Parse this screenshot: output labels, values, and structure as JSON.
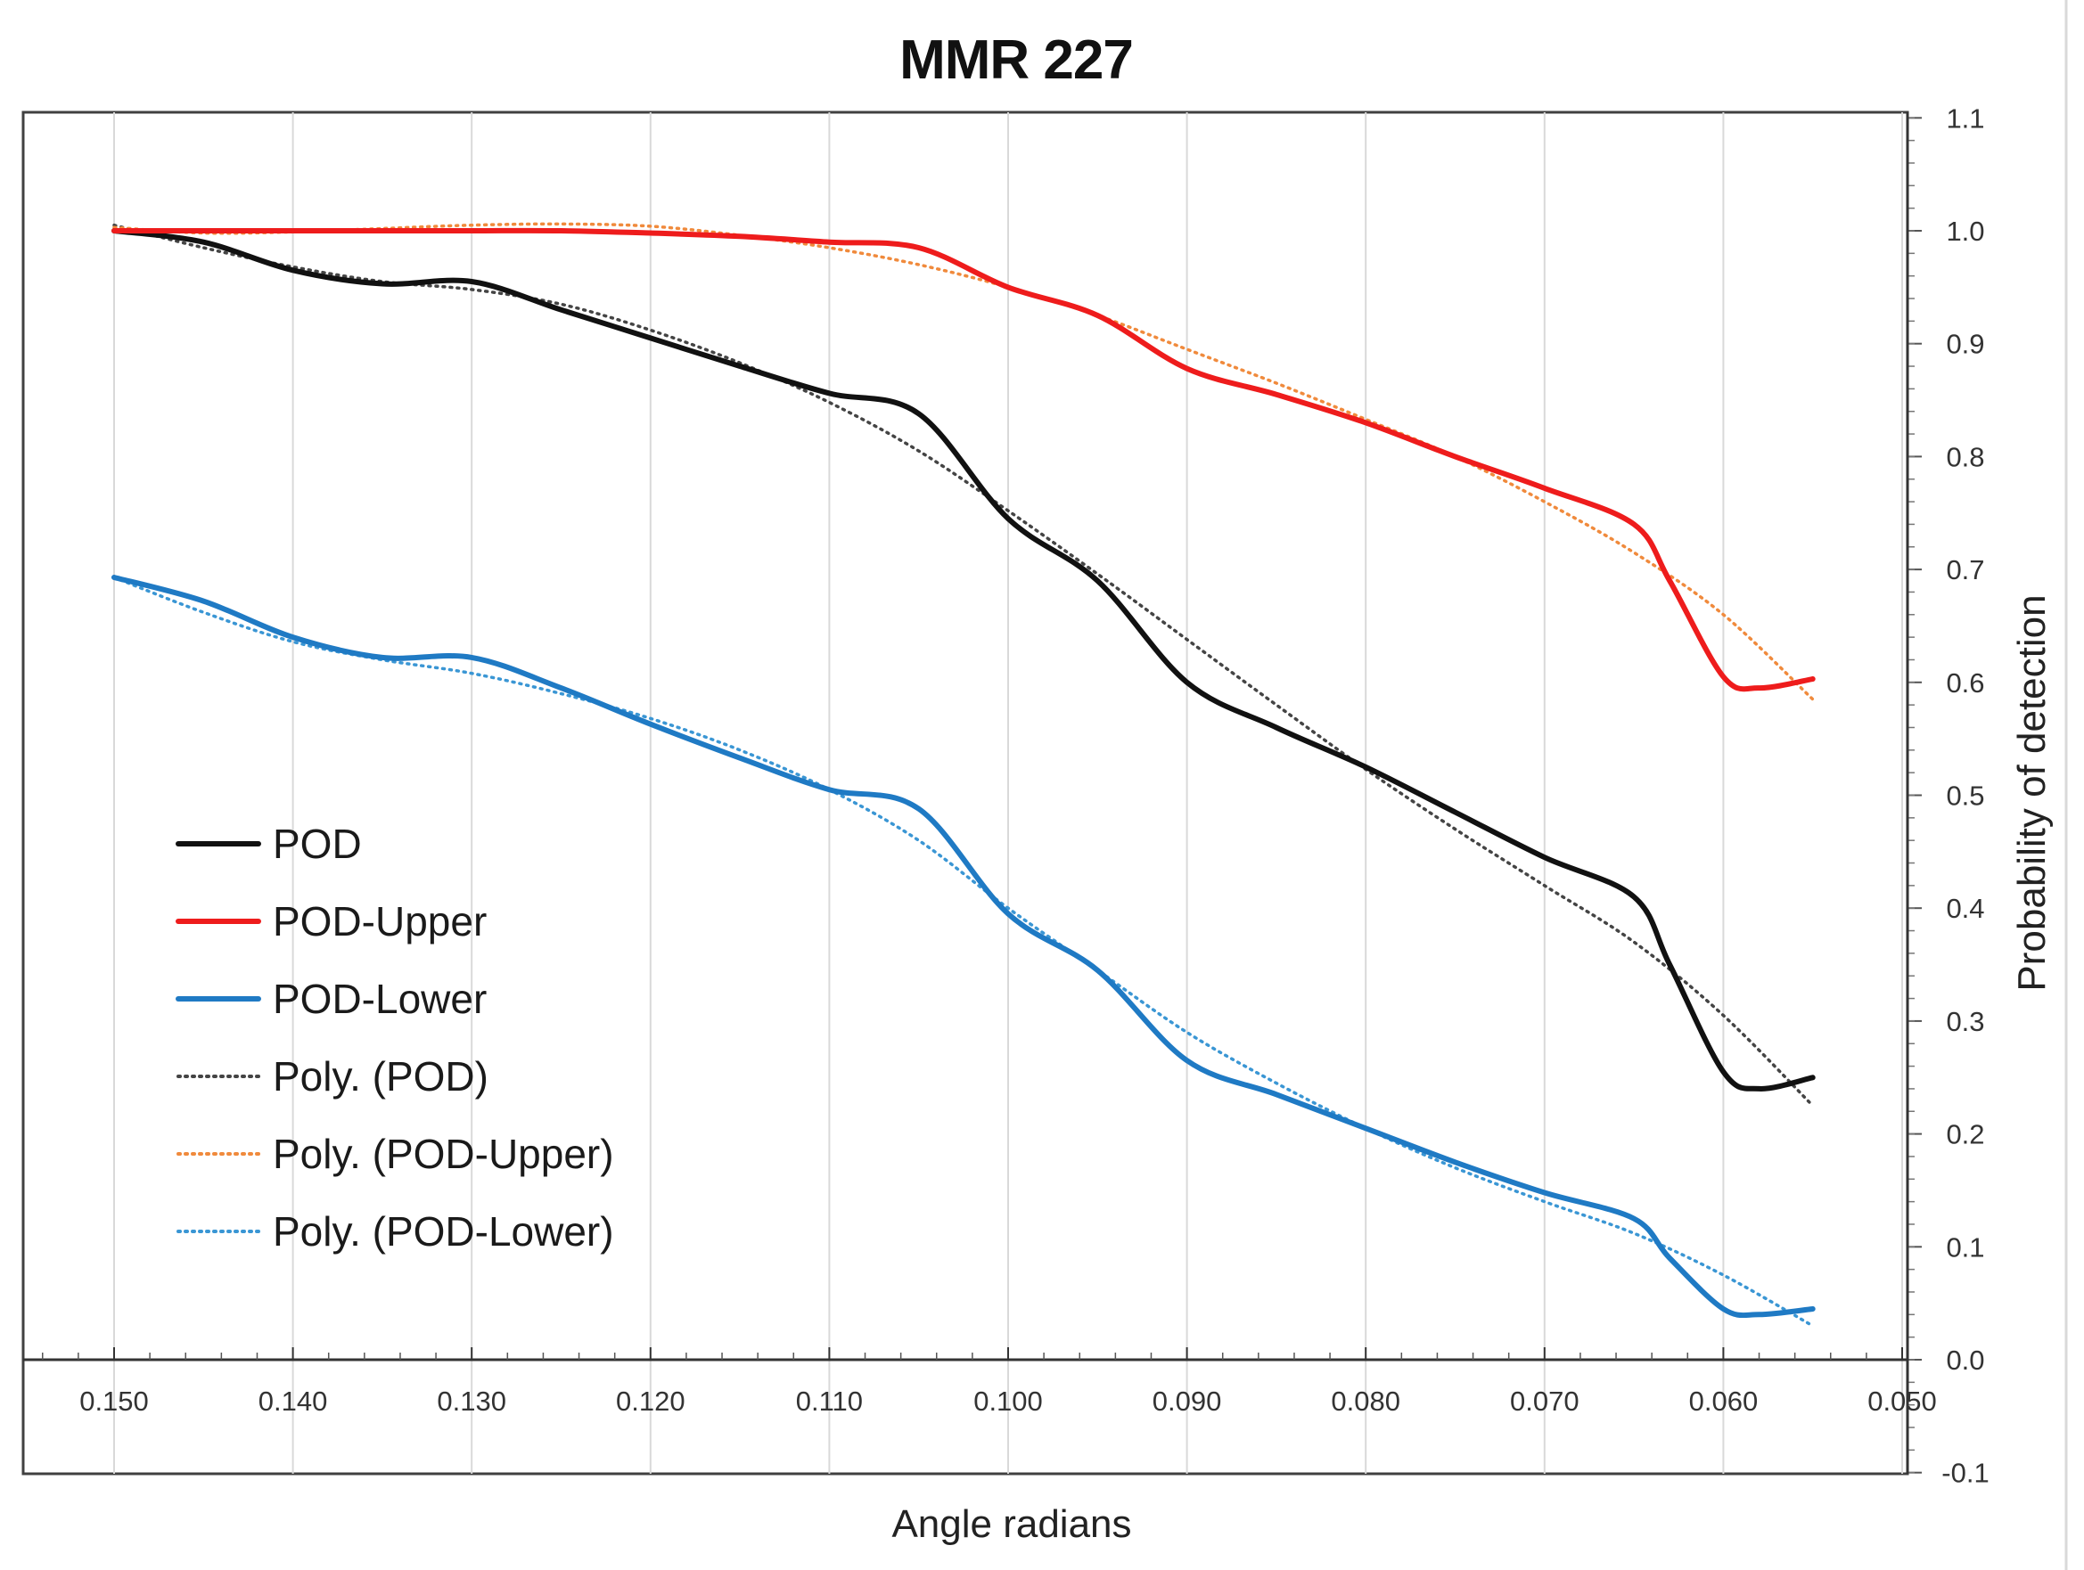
{
  "chart_data": {
    "type": "line",
    "title": "MMR 227",
    "xlabel": "Angle radians",
    "ylabel": "Probability of detection",
    "xlim": [
      0.15,
      0.05
    ],
    "ylim": [
      -0.1,
      1.1
    ],
    "x_ticks": [
      "0.150",
      "0.140",
      "0.130",
      "0.120",
      "0.110",
      "0.100",
      "0.090",
      "0.080",
      "0.070",
      "0.060",
      "0.050"
    ],
    "y_ticks": [
      "1.1",
      "1.0",
      "0.9",
      "0.8",
      "0.7",
      "0.6",
      "0.5",
      "0.4",
      "0.3",
      "0.2",
      "0.1",
      "0.0",
      "-0.1"
    ],
    "grid": true,
    "legend_position": "bottom-left",
    "series": [
      {
        "name": "POD",
        "color": "#111111",
        "style": "solid",
        "x": [
          0.15,
          0.145,
          0.14,
          0.135,
          0.13,
          0.125,
          0.12,
          0.115,
          0.11,
          0.105,
          0.1,
          0.095,
          0.09,
          0.085,
          0.08,
          0.075,
          0.07,
          0.065,
          0.063,
          0.06,
          0.058,
          0.055
        ],
        "y": [
          1.0,
          0.99,
          0.965,
          0.953,
          0.955,
          0.93,
          0.905,
          0.88,
          0.856,
          0.838,
          0.745,
          0.69,
          0.6,
          0.56,
          0.525,
          0.485,
          0.445,
          0.41,
          0.35,
          0.255,
          0.24,
          0.25
        ]
      },
      {
        "name": "POD-Upper",
        "color": "#ee1c1c",
        "style": "solid",
        "x": [
          0.15,
          0.145,
          0.14,
          0.135,
          0.13,
          0.125,
          0.12,
          0.115,
          0.11,
          0.105,
          0.1,
          0.095,
          0.09,
          0.085,
          0.08,
          0.075,
          0.07,
          0.065,
          0.063,
          0.06,
          0.058,
          0.055
        ],
        "y": [
          1.0,
          1.0,
          1.0,
          1.0,
          1.0,
          1.0,
          0.998,
          0.995,
          0.99,
          0.985,
          0.95,
          0.925,
          0.878,
          0.855,
          0.83,
          0.8,
          0.772,
          0.74,
          0.69,
          0.605,
          0.595,
          0.603
        ]
      },
      {
        "name": "POD-Lower",
        "color": "#1f7ac4",
        "style": "solid",
        "x": [
          0.15,
          0.145,
          0.14,
          0.135,
          0.13,
          0.125,
          0.12,
          0.115,
          0.11,
          0.105,
          0.1,
          0.095,
          0.09,
          0.085,
          0.08,
          0.075,
          0.07,
          0.065,
          0.063,
          0.06,
          0.058,
          0.055
        ],
        "y": [
          0.693,
          0.672,
          0.64,
          0.622,
          0.622,
          0.595,
          0.563,
          0.533,
          0.505,
          0.488,
          0.395,
          0.345,
          0.265,
          0.235,
          0.205,
          0.175,
          0.148,
          0.125,
          0.09,
          0.045,
          0.04,
          0.045
        ]
      },
      {
        "name": "Poly. (POD)",
        "color": "#444444",
        "style": "dotted",
        "x": [
          0.15,
          0.145,
          0.14,
          0.135,
          0.13,
          0.125,
          0.12,
          0.115,
          0.11,
          0.105,
          0.1,
          0.095,
          0.09,
          0.085,
          0.08,
          0.075,
          0.07,
          0.065,
          0.06,
          0.055
        ],
        "y": [
          1.005,
          0.985,
          0.968,
          0.955,
          0.948,
          0.935,
          0.912,
          0.883,
          0.848,
          0.805,
          0.752,
          0.696,
          0.638,
          0.58,
          0.523,
          0.47,
          0.42,
          0.37,
          0.305,
          0.225
        ]
      },
      {
        "name": "Poly. (POD-Upper)",
        "color": "#f08a3c",
        "style": "dotted",
        "x": [
          0.15,
          0.145,
          0.14,
          0.135,
          0.13,
          0.125,
          0.12,
          0.115,
          0.11,
          0.105,
          0.1,
          0.095,
          0.09,
          0.085,
          0.08,
          0.075,
          0.07,
          0.065,
          0.06,
          0.055
        ],
        "y": [
          1.003,
          0.998,
          0.999,
          1.002,
          1.005,
          1.006,
          1.004,
          0.996,
          0.985,
          0.97,
          0.95,
          0.925,
          0.895,
          0.865,
          0.833,
          0.8,
          0.76,
          0.715,
          0.66,
          0.585
        ]
      },
      {
        "name": "Poly. (POD-Lower)",
        "color": "#3a96d4",
        "style": "dotted",
        "x": [
          0.15,
          0.145,
          0.14,
          0.135,
          0.13,
          0.125,
          0.12,
          0.115,
          0.11,
          0.105,
          0.1,
          0.095,
          0.09,
          0.085,
          0.08,
          0.075,
          0.07,
          0.065,
          0.06,
          0.055
        ],
        "y": [
          0.693,
          0.662,
          0.636,
          0.62,
          0.608,
          0.59,
          0.568,
          0.54,
          0.505,
          0.46,
          0.4,
          0.345,
          0.29,
          0.245,
          0.205,
          0.17,
          0.14,
          0.112,
          0.075,
          0.03
        ]
      }
    ]
  }
}
